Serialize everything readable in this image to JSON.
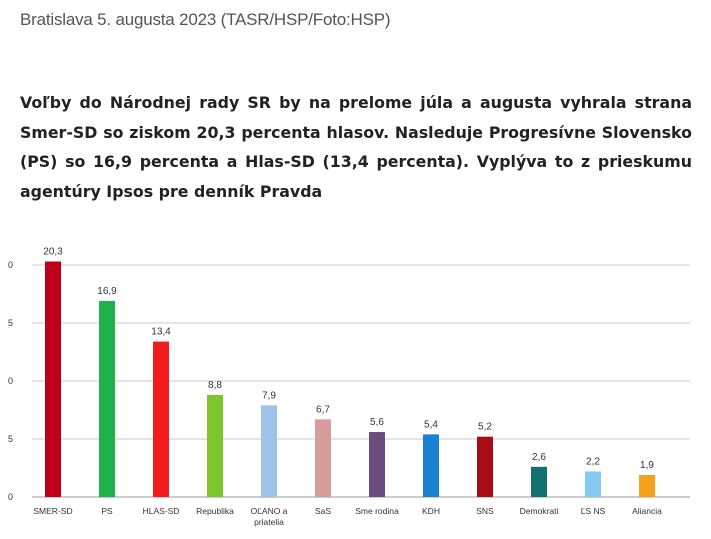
{
  "article": {
    "caption": "Bratislava 5. augusta 2023  (TASR/HSP/Foto:HSP)",
    "lead": "Voľby do Národnej rady SR by na prelome júla a augusta vyhrala strana Smer-SD so ziskom 20,3 percenta hlasov. Nasleduje Progresívne Slovensko (PS) so 16,9 percenta a Hlas-SD (13,4 percenta). Vyplýva to z prieskumu agentúry Ipsos pre denník Pravda"
  },
  "chart_data": {
    "type": "bar",
    "categories": [
      "SMER-SD",
      "PS",
      "HLAS-SD",
      "Republika",
      "OĽANO a priatelia",
      "SaS",
      "Sme rodina",
      "KDH",
      "SNS",
      "Demokrati",
      "ĽS NS",
      "Aliancia"
    ],
    "values": [
      20.3,
      16.9,
      13.4,
      8.8,
      7.9,
      6.7,
      5.6,
      5.4,
      5.2,
      2.6,
      2.2,
      1.9
    ],
    "value_labels": [
      "20,3",
      "16,9",
      "13,4",
      "8,8",
      "7,9",
      "6,7",
      "5,6",
      "5,4",
      "5,2",
      "2,6",
      "2,2",
      "1,9"
    ],
    "colors": [
      "#c0001a",
      "#1fb24a",
      "#f31c1c",
      "#7dc62d",
      "#9fc3e8",
      "#d69c9c",
      "#6a4c7e",
      "#1a80d2",
      "#a80c14",
      "#14726e",
      "#86c9f2",
      "#f4a21c"
    ],
    "y_tick_labels": [
      "0",
      "5",
      "0",
      "5",
      "0"
    ],
    "ylim": [
      0,
      20
    ],
    "grid": true,
    "title": "",
    "xlabel": "",
    "ylabel": ""
  }
}
